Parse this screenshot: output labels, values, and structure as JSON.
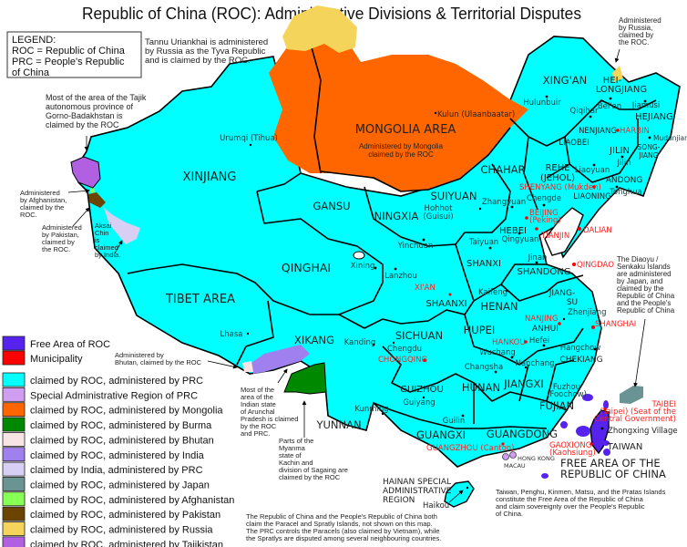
{
  "title": "Republic of China (ROC): Administrative Divisions & Territorial Disputes",
  "legend_box": [
    "LEGEND:",
    "ROC = Republic of China",
    "PRC = People's Republic",
    "of China"
  ],
  "legend": [
    {
      "label": "Free Area of ROC",
      "color": "#5522ee"
    },
    {
      "label": "Municipality",
      "color": "#ff0000"
    },
    {
      "label": "claimed by ROC, administered by PRC",
      "color": "#00ffff"
    },
    {
      "label": "Special Administrative Region of PRC",
      "color": "#d09ef0"
    },
    {
      "label": "claimed by ROC, administered by Mongolia",
      "color": "#ff6600"
    },
    {
      "label": "claimed by ROC, administered by Burma",
      "color": "#008800"
    },
    {
      "label": "claimed by ROC, administered by Bhutan",
      "color": "#f8e4e4"
    },
    {
      "label": "claimed by ROC, administered by India",
      "color": "#a080ee"
    },
    {
      "label": "claimed by India, administered by PRC",
      "color": "#d8d0f4"
    },
    {
      "label": "claimed by ROC, administered by Japan",
      "color": "#6a9494"
    },
    {
      "label": "claimed by ROC, administered by Afghanistan",
      "color": "#88ff55"
    },
    {
      "label": "claimed by ROC, administered by Pakistan",
      "color": "#6a4400"
    },
    {
      "label": "claimed by ROC, administered by Russia",
      "color": "#f4d45a"
    },
    {
      "label": "claimed by ROC, administered by Tajikistan",
      "color": "#b060e0"
    }
  ],
  "regions": {
    "xinjiang": "XINJIANG",
    "gansu": "GANSU",
    "ningxia": "NINGXIA",
    "qinghai": "QINGHAI",
    "tibet": "TIBET AREA",
    "xikang": "XIKANG",
    "sichuan": "SICHUAN",
    "suiyuan": "SUIYUAN",
    "mongolia": "MONGOLIA AREA",
    "xingan": "XING'AN",
    "heilongjiang": [
      "HEI-",
      "LONGJIANG"
    ],
    "hejiang": "HEJIANG",
    "nenjiang": "NENJIANG",
    "liaobei": "LIAOBEI",
    "jilin": "JILIN",
    "songjiang": [
      "SONG-",
      "JIANG"
    ],
    "chahar": "CHAHAR",
    "rehe": [
      "REHE",
      "(JEHOL)"
    ],
    "andong": "ANDONG",
    "liaoning": "LIAONING",
    "hebei": "HEBEI",
    "shanxi": "SHANXI",
    "shandong": "SHANDONG",
    "shaanxi": "SHAANXI",
    "henan": "HENAN",
    "jiangsu": [
      "JIANG-",
      "SU"
    ],
    "hupei": "HUPEI",
    "anhui": "ANHUI",
    "chekiang": "CHEKIANG",
    "guizhou": "GUIZHOU",
    "hunan": "HUNAN",
    "jiangxi": "JIANGXI",
    "fujian": "FUJIAN",
    "yunnan": "YUNNAN",
    "guangxi": "GUANGXI",
    "guangdong": "GUANGDONG",
    "taiwan": "TAIWAN",
    "hainan": [
      "HAINAN SPECIAL",
      "ADMINISTRATIVE",
      "REGION"
    ],
    "free_area": [
      "FREE AREA OF THE",
      "REPUBLIC OF CHINA"
    ]
  },
  "cities": {
    "urumqi": "Urumqi (Tihua)",
    "lhasa": "Lhasa",
    "kanding": "Kanding",
    "chengdu": "Chengdu",
    "xining": "Xining",
    "lanzhou": "Lanzhou",
    "yinchuan": "Yinchuan",
    "hohhot": [
      "Hohhot",
      "(Guisui)"
    ],
    "kulun": "Kulun (Ulaanbaatar)",
    "hulunbuir": "Hulunbuir",
    "beian": "Bei'an",
    "qiqihar": "Qiqihar",
    "jiamusi": "Jiamusi",
    "mudanjiang": "Mudanjiang",
    "jilin": "Jilin",
    "liaoyuan": "Liaoyuan",
    "tonghua": "Tonghua",
    "chengde": "Chengde",
    "zhangyuan": "Zhangyuan",
    "qingyuan": "Qingyuan",
    "taiyuan": "Taiyuan",
    "jinan": "Jinan",
    "kaifeng": "Kaifeng",
    "zhenjiang": "Zhenjiang",
    "hefei": "Hefei",
    "wuchang": "Wuchang",
    "hangchow": "Hangchow",
    "changsha": "Changsha",
    "nanchang": "Nanchang",
    "guiyang": "Guiyang",
    "fuzhou": [
      "Fuzhou",
      "(Foochow)"
    ],
    "kunming": "Kunming",
    "guilin": "Guilin",
    "hongkong": "HONG KONG",
    "macau": "MACAU",
    "haikou": "Haikou",
    "zhongxing": "Zhongxing Village"
  },
  "municipalities": {
    "chongqing": "CHONGQING",
    "xian": "XI'AN",
    "harbin": "HARBIN",
    "shenyang": "SHENYANG (Mukden)",
    "beijing": [
      "BEIJING",
      "(Peking)"
    ],
    "tianjin": "TIANJIN",
    "dalian": "DALIAN",
    "qingdao": "QINGDAO",
    "nanjing": "NANJING",
    "shanghai": "SHANGHAI",
    "hankou": "HANKOU",
    "guangzhou": "GUANGZHOU (Canton)",
    "taibei": [
      "TAIBEI",
      "(Taipei) (Seat of the",
      "Central Government)"
    ],
    "gaoxiong": [
      "GAOXIONG",
      "(Kaohsiung)"
    ]
  },
  "notes": {
    "tannu": [
      "Tannu Uriankhai is administered",
      "by Russia as the Tyva Republic",
      "and is claimed by the ROC."
    ],
    "mongolia_admin": [
      "Administered by Mongolia",
      "claimed by the ROC"
    ],
    "russia": [
      "Administered",
      "by Russia,",
      "claimed by",
      "the ROC."
    ],
    "tajik": [
      "Most of the area of the Tajik",
      "autonomous province of",
      "Gorno-Badakhstan is",
      "claimed by the ROC"
    ],
    "afghanistan": [
      "Administered",
      "by Afghanistan,",
      "claimed by the",
      "ROC."
    ],
    "pakistan": [
      "Administered",
      "by Pakistan,",
      "claimed by",
      "the ROC."
    ],
    "aksai": [
      "Aksai",
      "Chin",
      "is",
      "claimed",
      "by India."
    ],
    "bhutan": [
      "Administered by",
      "Bhutan, claimed by the ROC"
    ],
    "arunachal": [
      "Most of the",
      "area of the",
      "Indian state",
      "of Arunchal",
      "Pradesh is claimed",
      "by the ROC",
      "and PRC."
    ],
    "myanma": [
      "Parts of the",
      "Myanma",
      "state of",
      "Kachin and",
      "division of Sagaing are",
      "claimed by the ROC"
    ],
    "diaoyu": [
      "The Diaoyu /",
      "Senkaku Islands",
      "are administered",
      "by Japan, and",
      "claimed by the",
      "Republic of China",
      "and the People's",
      "Republic of China"
    ],
    "free_area": [
      "Taiwan, Penghu, Kinmen, Matsu, and the Pratas Islands",
      "constitute the Free Area of the Republic of China",
      "and claim sovereignty over the People's Republic",
      "of China."
    ],
    "islands": [
      "The Republic of China and the People's Republic of China both",
      "claim the Paracel and Spratly Islands, not shown on this map.",
      "The PRC controls the Paracels (also claimed by Vietnam), while",
      "the Spratlys are disputed among several neighbouring countries."
    ]
  }
}
